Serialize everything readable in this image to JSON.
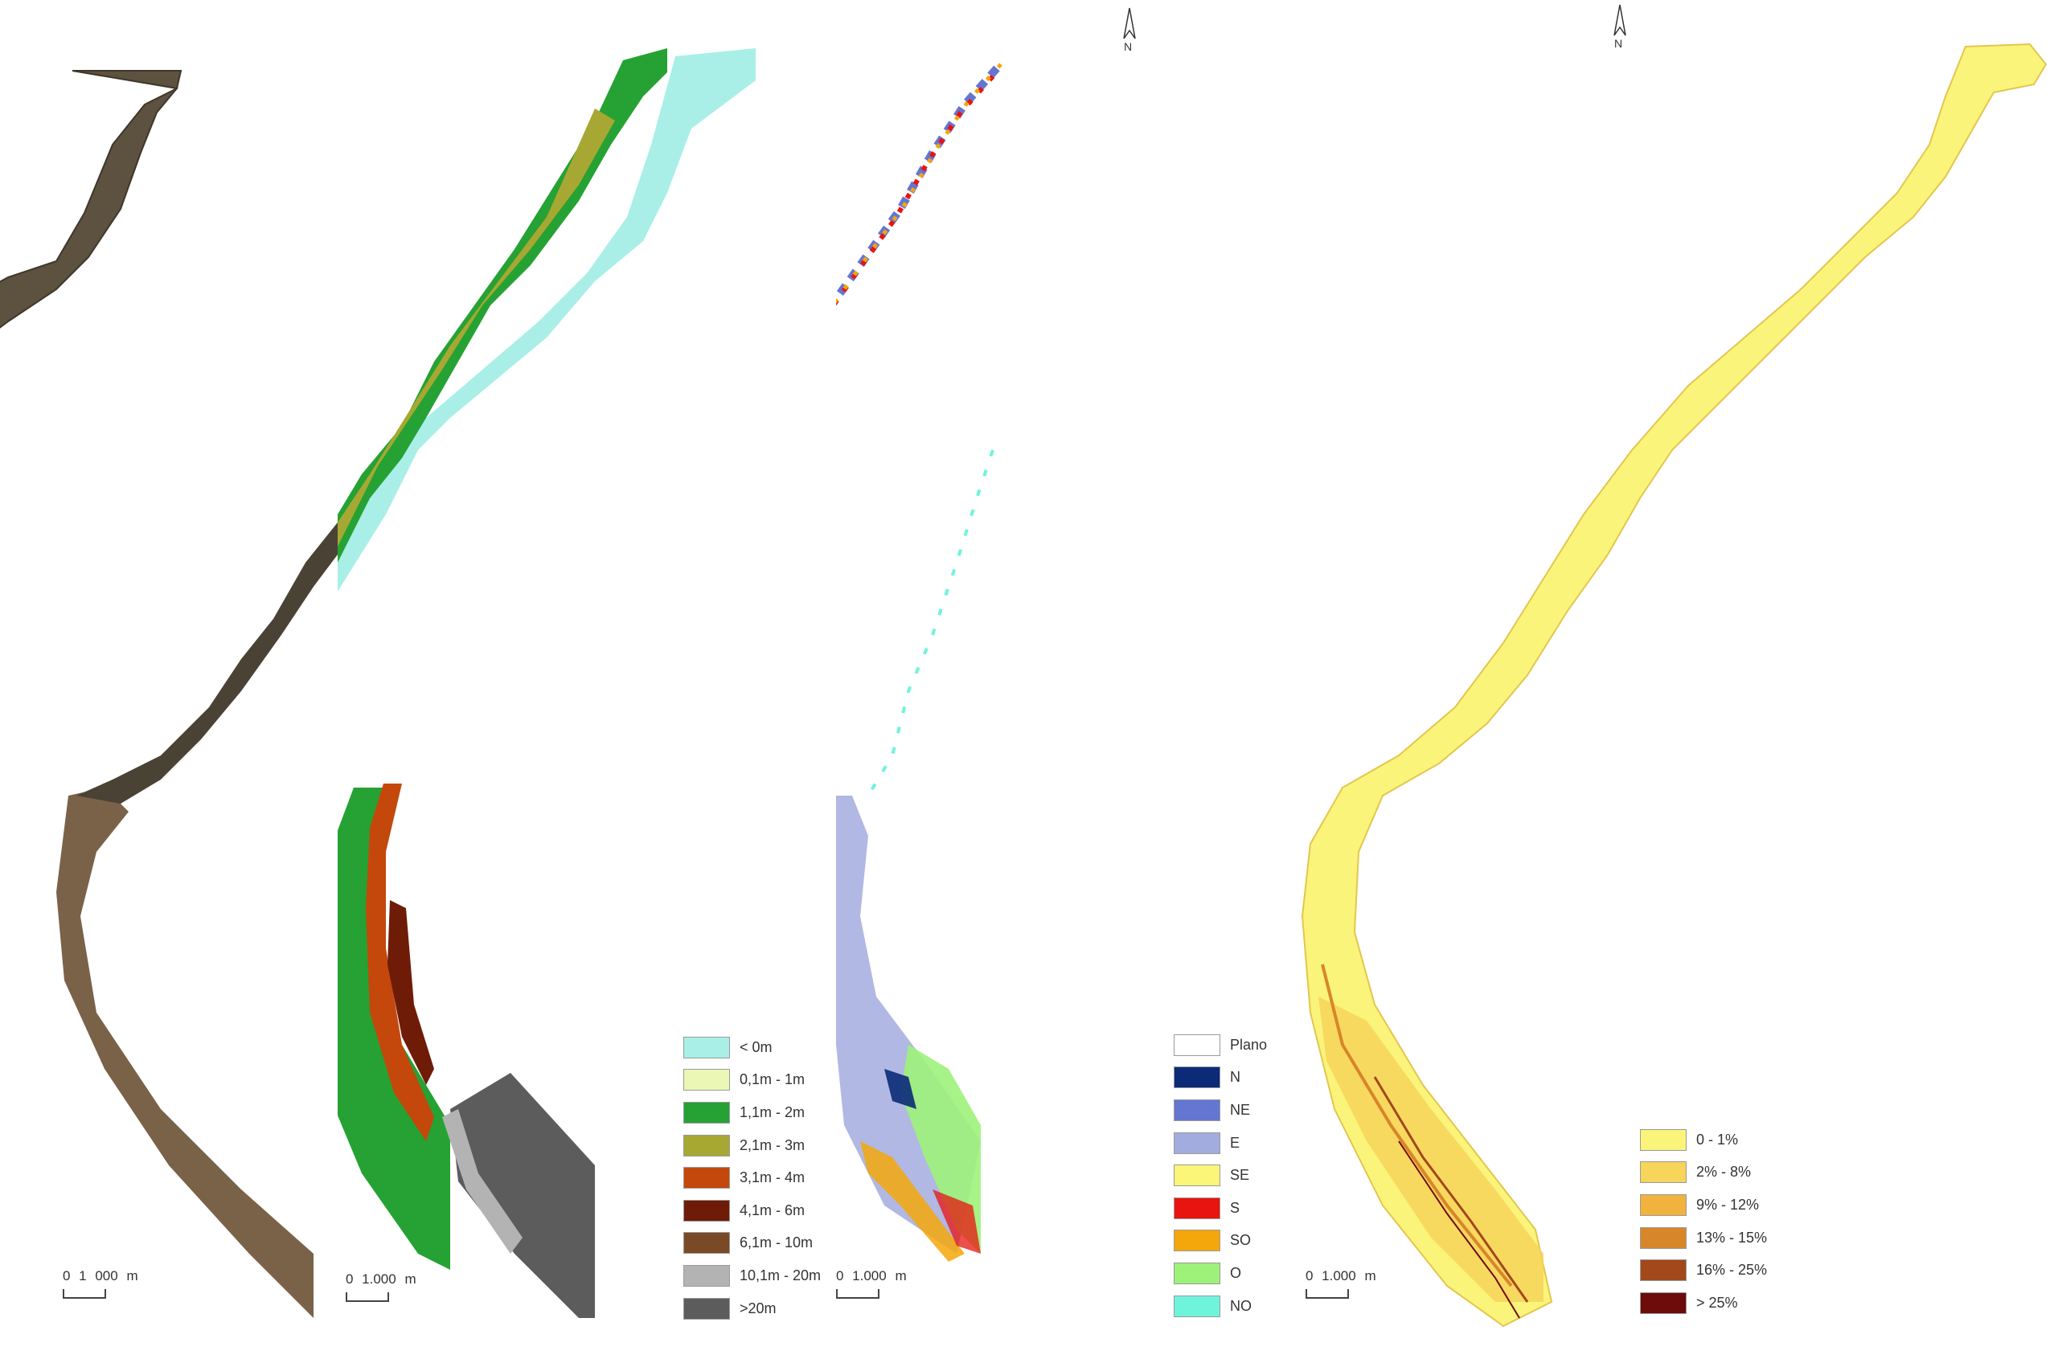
{
  "panels": {
    "satellite": {
      "scale_label": "0  1 000 m"
    },
    "elevation": {
      "scale_label": "0  1.000 m",
      "legend": [
        {
          "label": "< 0m",
          "color": "#a9efe8"
        },
        {
          "label": "0,1m - 1m",
          "color": "#eaf7b5"
        },
        {
          "label": "1,1m - 2m",
          "color": "#25a233"
        },
        {
          "label": "2,1m - 3m",
          "color": "#a7a833"
        },
        {
          "label": "3,1m - 4m",
          "color": "#c4480c"
        },
        {
          "label": "4,1m - 6m",
          "color": "#6e1c08"
        },
        {
          "label": "6,1m - 10m",
          "color": "#7a4a26"
        },
        {
          "label": "10,1m - 20m",
          "color": "#b3b3b3"
        },
        {
          "label": ">20m",
          "color": "#5c5c5c"
        }
      ]
    },
    "aspect": {
      "scale_label": "0  1.000 m",
      "north_label": "N",
      "legend": [
        {
          "label": "Plano",
          "color": "#ffffff"
        },
        {
          "label": "N",
          "color": "#0b2a78"
        },
        {
          "label": "NE",
          "color": "#6575d2"
        },
        {
          "label": "E",
          "color": "#a3acde"
        },
        {
          "label": "SE",
          "color": "#fbf578"
        },
        {
          "label": "S",
          "color": "#e8140f"
        },
        {
          "label": "SO",
          "color": "#f4a70a"
        },
        {
          "label": "O",
          "color": "#9ef27a"
        },
        {
          "label": "NO",
          "color": "#6ff4dc"
        }
      ]
    },
    "slope": {
      "scale_label": "0  1.000 m",
      "north_label": "N",
      "legend": [
        {
          "label": "0 - 1%",
          "color": "#fbf47a"
        },
        {
          "label": "2% - 8%",
          "color": "#f7d45a"
        },
        {
          "label": "9% - 12%",
          "color": "#f1b33e"
        },
        {
          "label": "13% - 15%",
          "color": "#d8862a"
        },
        {
          "label": "16% - 25%",
          "color": "#a2481a"
        },
        {
          "label": "> 25%",
          "color": "#6e0b0b"
        }
      ]
    }
  }
}
